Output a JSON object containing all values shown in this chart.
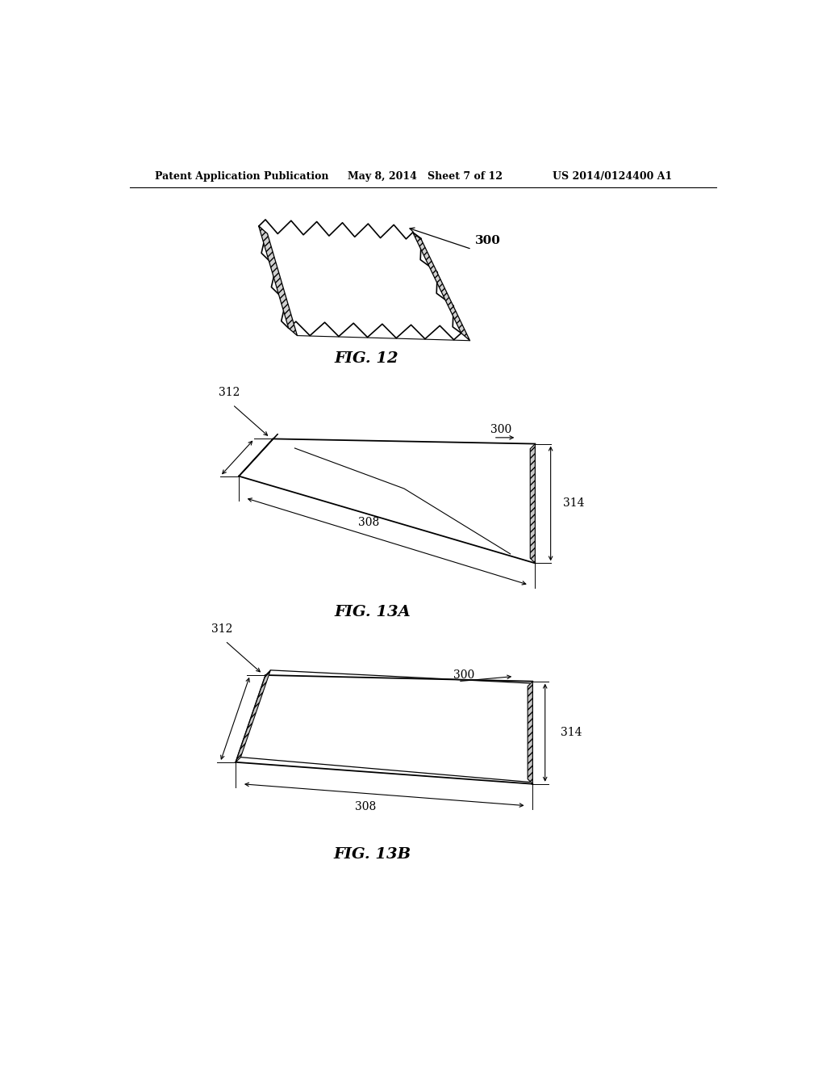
{
  "background_color": "#ffffff",
  "header_left": "Patent Application Publication",
  "header_mid": "May 8, 2014   Sheet 7 of 12",
  "header_right": "US 2014/0124400 A1",
  "fig12_label": "FIG. 12",
  "fig13a_label": "FIG. 13A",
  "fig13b_label": "FIG. 13B",
  "ref_300": "300",
  "ref_308": "308",
  "ref_312": "312",
  "ref_314": "314"
}
